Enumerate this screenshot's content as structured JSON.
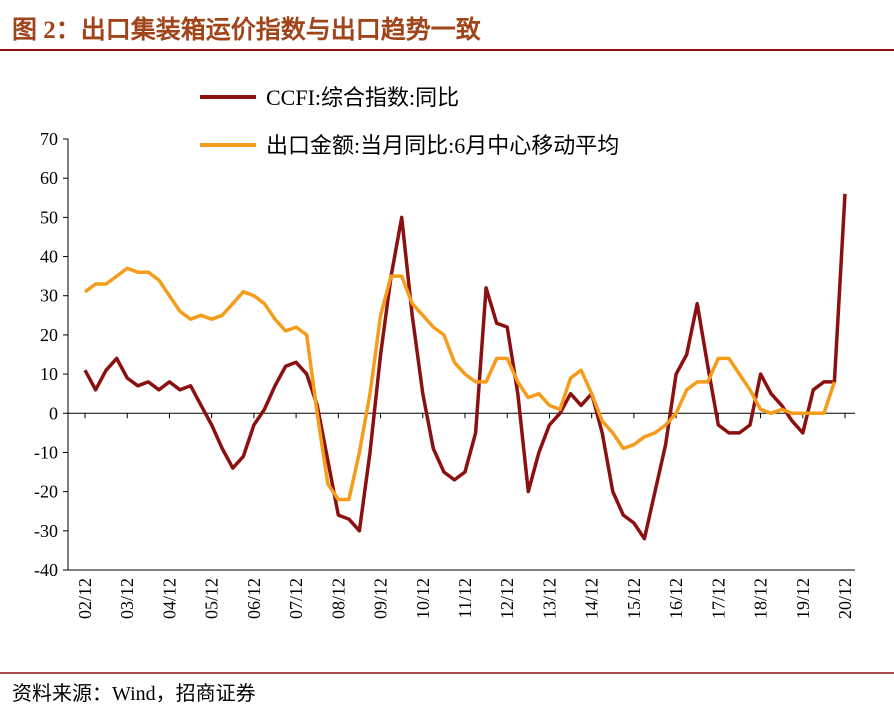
{
  "header": {
    "title": "图 2：出口集装箱运价指数与出口趋势一致"
  },
  "chart_data": {
    "type": "line",
    "categories": [
      "02/12",
      null,
      null,
      null,
      "03/12",
      null,
      null,
      null,
      "04/12",
      null,
      null,
      null,
      "05/12",
      null,
      null,
      null,
      "06/12",
      null,
      null,
      null,
      "07/12",
      null,
      null,
      null,
      "08/12",
      null,
      null,
      null,
      "09/12",
      null,
      null,
      null,
      "10/12",
      null,
      null,
      null,
      "11/12",
      null,
      null,
      null,
      "12/12",
      null,
      null,
      null,
      "13/12",
      null,
      null,
      null,
      "14/12",
      null,
      null,
      null,
      "15/12",
      null,
      null,
      null,
      "16/12",
      null,
      null,
      null,
      "17/12",
      null,
      null,
      null,
      "18/12",
      null,
      null,
      null,
      "19/12",
      null,
      null,
      null,
      "20/12"
    ],
    "series": [
      {
        "name": "CCFI:综合指数:同比",
        "color": "#8b1010",
        "values": [
          11,
          6,
          11,
          14,
          9,
          7,
          8,
          6,
          8,
          6,
          7,
          2,
          -3,
          -9,
          -14,
          -11,
          -3,
          1,
          7,
          12,
          13,
          10,
          2,
          -12,
          -26,
          -27,
          -30,
          -10,
          15,
          35,
          50,
          25,
          5,
          -9,
          -15,
          -17,
          -15,
          -5,
          32,
          23,
          22,
          5,
          -20,
          -10,
          -3,
          0,
          5,
          2,
          5,
          -5,
          -20,
          -26,
          -28,
          -32,
          -20,
          -8,
          10,
          15,
          28,
          12,
          -3,
          -5,
          -5,
          -3,
          10,
          5,
          2,
          -2,
          -5,
          6,
          8,
          8,
          56
        ]
      },
      {
        "name": "出口金额:当月同比:6月中心移动平均",
        "color": "#f59c1a",
        "values": [
          31,
          33,
          33,
          35,
          37,
          36,
          36,
          34,
          30,
          26,
          24,
          25,
          24,
          25,
          28,
          31,
          30,
          28,
          24,
          21,
          22,
          20,
          0,
          -18,
          -22,
          -22,
          -10,
          5,
          25,
          35,
          35,
          28,
          25,
          22,
          20,
          13,
          10,
          8,
          8,
          14,
          14,
          8,
          4,
          5,
          2,
          1,
          9,
          11,
          5,
          -2,
          -5,
          -9,
          -8,
          -6,
          -5,
          -3,
          0,
          6,
          8,
          8,
          14,
          14,
          10,
          6,
          1,
          0,
          1,
          0,
          0,
          0,
          0,
          8,
          null
        ]
      }
    ],
    "ylim": [
      -40,
      70
    ],
    "yticks": [
      -40,
      -30,
      -20,
      -10,
      0,
      10,
      20,
      30,
      40,
      50,
      60,
      70
    ],
    "legend": "top"
  },
  "footer": {
    "source": "资料来源：Wind，招商证券"
  }
}
